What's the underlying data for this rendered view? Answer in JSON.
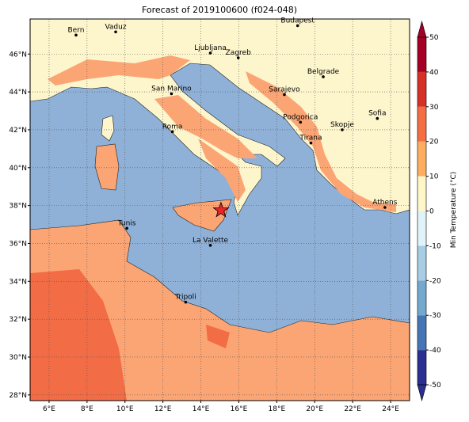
{
  "title": "Forecast of 2019100600 (f024-048)",
  "map": {
    "lonlim": [
      5,
      25
    ],
    "latlim": [
      27.7,
      47.85
    ],
    "lon_ticks": [
      {
        "value": 6,
        "label": "6°E"
      },
      {
        "value": 8,
        "label": "8°E"
      },
      {
        "value": 10,
        "label": "10°E"
      },
      {
        "value": 12,
        "label": "12°E"
      },
      {
        "value": 14,
        "label": "14°E"
      },
      {
        "value": 16,
        "label": "16°E"
      },
      {
        "value": 18,
        "label": "18°E"
      },
      {
        "value": 20,
        "label": "20°E"
      },
      {
        "value": 22,
        "label": "22°E"
      },
      {
        "value": 24,
        "label": "24°E"
      }
    ],
    "lat_ticks": [
      {
        "value": 28,
        "label": "28°N"
      },
      {
        "value": 30,
        "label": "30°N"
      },
      {
        "value": 32,
        "label": "32°N"
      },
      {
        "value": 34,
        "label": "34°N"
      },
      {
        "value": 36,
        "label": "36°N"
      },
      {
        "value": 38,
        "label": "38°N"
      },
      {
        "value": 40,
        "label": "40°N"
      },
      {
        "value": 42,
        "label": "42°N"
      },
      {
        "value": 44,
        "label": "44°N"
      },
      {
        "value": 46,
        "label": "46°N"
      }
    ],
    "cities": [
      {
        "name": "Bern",
        "lon": 7.42,
        "lat": 47.0
      },
      {
        "name": "Vaduz",
        "lon": 9.51,
        "lat": 47.17
      },
      {
        "name": "Budapest",
        "lon": 19.1,
        "lat": 47.5
      },
      {
        "name": "Ljubljana",
        "lon": 14.5,
        "lat": 46.05
      },
      {
        "name": "Zagreb",
        "lon": 15.97,
        "lat": 45.8
      },
      {
        "name": "Belgrade",
        "lon": 20.45,
        "lat": 44.8
      },
      {
        "name": "Sarajevo",
        "lon": 18.4,
        "lat": 43.86
      },
      {
        "name": "San Marino",
        "lon": 12.45,
        "lat": 43.9
      },
      {
        "name": "Sofia",
        "lon": 23.3,
        "lat": 42.6
      },
      {
        "name": "Podgorica",
        "lon": 19.25,
        "lat": 42.4
      },
      {
        "name": "Skopje",
        "lon": 21.45,
        "lat": 42.0
      },
      {
        "name": "Roma",
        "lon": 12.5,
        "lat": 41.9
      },
      {
        "name": "Tirana",
        "lon": 19.8,
        "lat": 41.3
      },
      {
        "name": "Athens",
        "lon": 23.7,
        "lat": 37.9
      },
      {
        "name": "Tunis",
        "lon": 10.1,
        "lat": 36.8
      },
      {
        "name": "La Valette",
        "lon": 14.5,
        "lat": 35.9
      },
      {
        "name": "Tripoli",
        "lon": 13.2,
        "lat": 32.9
      }
    ],
    "marker": {
      "lon": 15.06,
      "lat": 37.75,
      "color": "#e8262a"
    }
  },
  "colorbar": {
    "label": "Min Temperature (°C)",
    "ticks": [
      -50,
      -40,
      -30,
      -20,
      -10,
      0,
      10,
      20,
      30,
      40,
      50
    ],
    "colors": [
      "#2b2f8f",
      "#4575b4",
      "#74a9cf",
      "#a6cde3",
      "#e0f3f8",
      "#fff7c8",
      "#fdae61",
      "#f46d43",
      "#d73027",
      "#a50026"
    ]
  }
}
